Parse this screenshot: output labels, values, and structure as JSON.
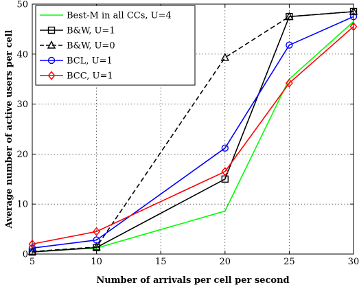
{
  "chart_data": {
    "type": "line",
    "title": "",
    "xlabel": "Number of arrivals per cell per second",
    "ylabel": "Average number of active users per cell",
    "xlim": [
      5,
      30
    ],
    "ylim": [
      0,
      50
    ],
    "xticks": [
      5,
      10,
      15,
      20,
      25,
      30
    ],
    "yticks": [
      0,
      10,
      20,
      30,
      40,
      50
    ],
    "grid": true,
    "legend_position": "top-left",
    "x": [
      5,
      10,
      20,
      25,
      30
    ],
    "series": [
      {
        "name": "Best-M in all CCs, U=4",
        "color": "#00ff00",
        "dash": "solid",
        "marker": "none",
        "values": [
          0.5,
          1.2,
          8.6,
          35.0,
          46.5
        ]
      },
      {
        "name": "B&W, U=1",
        "color": "#000000",
        "dash": "solid",
        "marker": "square",
        "values": [
          0.4,
          1.3,
          15.0,
          47.5,
          48.5
        ]
      },
      {
        "name": "B&W, U=0",
        "color": "#000000",
        "dash": "dashed",
        "marker": "triangle",
        "values": [
          0.5,
          1.4,
          39.3,
          47.5,
          48.5
        ]
      },
      {
        "name": "BCL, U=1",
        "color": "#0000ff",
        "dash": "solid",
        "marker": "circle",
        "values": [
          1.2,
          2.8,
          21.2,
          41.8,
          47.5
        ]
      },
      {
        "name": "BCC, U=1",
        "color": "#ff0000",
        "dash": "solid",
        "marker": "diamond",
        "values": [
          2.0,
          4.5,
          16.5,
          34.2,
          45.5
        ]
      }
    ]
  }
}
